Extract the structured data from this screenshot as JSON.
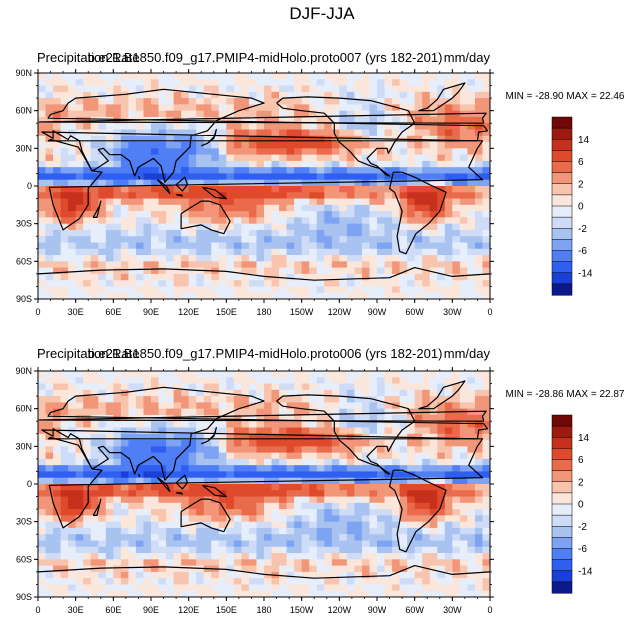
{
  "page": {
    "title": "DJF-JJA"
  },
  "palette": [
    "#0a1a8c",
    "#1a3fd6",
    "#2f5ff0",
    "#4f7ef5",
    "#7ea3f2",
    "#a9c3f0",
    "#cfdcf7",
    "#e6eefb",
    "#fbe6dc",
    "#f8c4ae",
    "#f2967a",
    "#ea6b4c",
    "#df4a2c",
    "#c6301c",
    "#9c1a10",
    "#700808"
  ],
  "colors": {
    "land_outline": "#000000",
    "frame": "#000000"
  },
  "chart_data": [
    {
      "type": "heatmap",
      "title_left": "Precipitation Rate",
      "title_center": "b.e21.B1850.f09_g17.PMIP4-midHolo.proto007 (yrs 182-201)",
      "title_right": "mm/day",
      "min_max": "MIN = -28.90  MAX =  22.46",
      "ylim": [
        -90,
        90
      ],
      "xlim": [
        0,
        360
      ],
      "y_ticks": [
        "90N",
        "60N",
        "30N",
        "0",
        "30S",
        "60S",
        "90S"
      ],
      "x_ticks": [
        "0",
        "30E",
        "60E",
        "90E",
        "120E",
        "150E",
        "180",
        "150W",
        "120W",
        "90W",
        "60W",
        "30W",
        "0"
      ],
      "colorbar_labels": [
        "14",
        "6",
        "2",
        "0",
        "-2",
        "-6",
        "-14"
      ],
      "amplitude": 1.0
    },
    {
      "type": "heatmap",
      "title_left": "Precipitation Rate",
      "title_center": "b.e21.B1850.f09_g17.PMIP4-midHolo.proto006 (yrs 182-201)",
      "title_right": "mm/day",
      "min_max": "MIN = -28.86  MAX =  22.87",
      "ylim": [
        -90,
        90
      ],
      "xlim": [
        0,
        360
      ],
      "y_ticks": [
        "90N",
        "60N",
        "30N",
        "0",
        "30S",
        "60S",
        "90S"
      ],
      "x_ticks": [
        "0",
        "30E",
        "60E",
        "90E",
        "120E",
        "150E",
        "180",
        "150W",
        "120W",
        "90W",
        "60W",
        "30W",
        "0"
      ],
      "colorbar_labels": [
        "14",
        "6",
        "2",
        "0",
        "-2",
        "-6",
        "-14"
      ],
      "amplitude": 1.03
    }
  ]
}
